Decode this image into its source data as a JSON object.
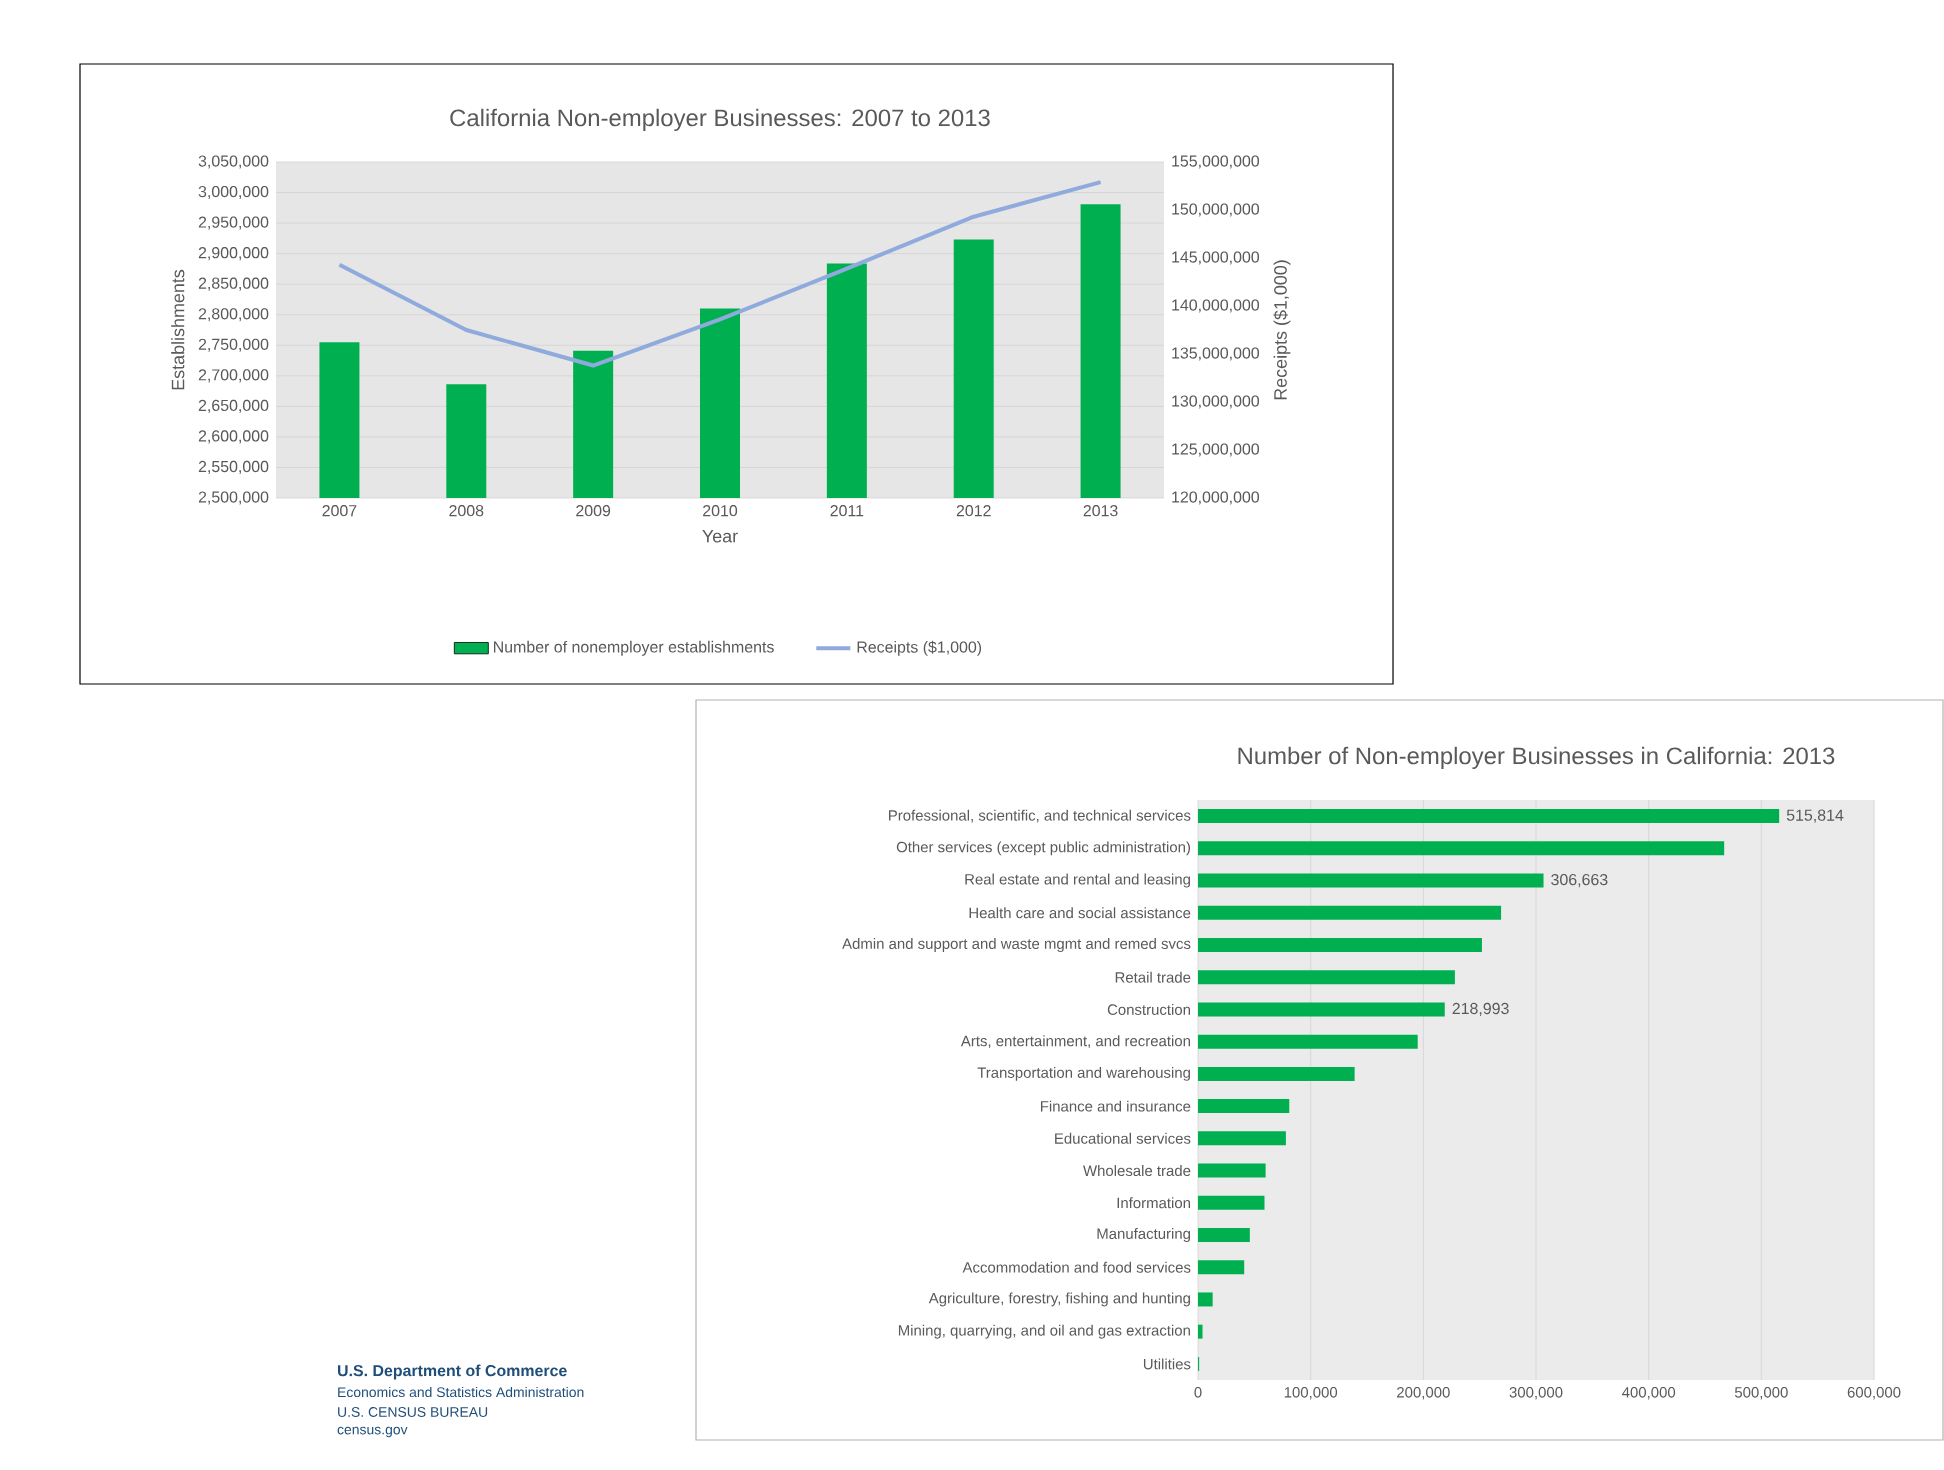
{
  "chart_data": [
    {
      "type": "bar",
      "title": "California Non-employer Businesses: 2007 to 2013",
      "xlabel": "Year",
      "ylabel": "Establishments",
      "y2label": "Receipts ($1,000)",
      "categories": [
        "2007",
        "2008",
        "2009",
        "2010",
        "2011",
        "2012",
        "2013"
      ],
      "series": [
        {
          "name": "Number of nonemployer establishments",
          "type": "bar",
          "color": "#00b050",
          "values": [
            2755000,
            2686000,
            2741000,
            2810000,
            2884000,
            2923000,
            2981000
          ]
        },
        {
          "name": "Receipts ($1,000)",
          "type": "line",
          "axis": "y2",
          "color": "#8faadc",
          "values": [
            144300000,
            137500000,
            133800000,
            138600000,
            143900000,
            149300000,
            152900000
          ]
        }
      ],
      "ylim": [
        2500000,
        3050000
      ],
      "yticks": [
        {
          "value": 2500000,
          "label": "2,500,000"
        },
        {
          "value": 2550000,
          "label": "2,550,000"
        },
        {
          "value": 2600000,
          "label": "2,600,000"
        },
        {
          "value": 2650000,
          "label": "2,650,000"
        },
        {
          "value": 2700000,
          "label": "2,700,000"
        },
        {
          "value": 2750000,
          "label": "2,750,000"
        },
        {
          "value": 2800000,
          "label": "2,800,000"
        },
        {
          "value": 2850000,
          "label": "2,850,000"
        },
        {
          "value": 2900000,
          "label": "2,900,000"
        },
        {
          "value": 2950000,
          "label": "2,950,000"
        },
        {
          "value": 3000000,
          "label": "3,000,000"
        },
        {
          "value": 3050000,
          "label": "3,050,000"
        }
      ],
      "y2lim": [
        120000000,
        155000000
      ],
      "y2ticks": [
        {
          "value": 120000000,
          "label": "120,000,000"
        },
        {
          "value": 125000000,
          "label": "125,000,000"
        },
        {
          "value": 130000000,
          "label": "130,000,000"
        },
        {
          "value": 135000000,
          "label": "135,000,000"
        },
        {
          "value": 140000000,
          "label": "140,000,000"
        },
        {
          "value": 145000000,
          "label": "145,000,000"
        },
        {
          "value": 150000000,
          "label": "150,000,000"
        },
        {
          "value": 155000000,
          "label": "155,000,000"
        }
      ],
      "grid": "y",
      "legend": "bottom"
    },
    {
      "type": "bar",
      "orientation": "horizontal",
      "title": "Number of Non-employer Businesses in California: 2013",
      "color": "#00b050",
      "categories": [
        "Professional, scientific, and technical services",
        "Other services (except public administration)",
        "Real estate and rental and leasing",
        "Health care and social assistance",
        "Admin and support and waste mgmt and remed svcs",
        "Retail trade",
        "Construction",
        "Arts, entertainment, and recreation",
        "Transportation and warehousing",
        "Finance and insurance",
        "Educational services",
        "Wholesale trade",
        "Information",
        "Manufacturing",
        "Accommodation and food services",
        "Agriculture, forestry, fishing and hunting",
        "Mining, quarrying, and oil and gas extraction",
        "Utilities"
      ],
      "values": [
        515814,
        467000,
        306663,
        269000,
        252000,
        228000,
        218993,
        195000,
        139000,
        81000,
        78000,
        60000,
        59000,
        46000,
        41000,
        13000,
        4000,
        1000
      ],
      "value_labels": [
        "515,814",
        null,
        "306,663",
        null,
        null,
        null,
        "218,993",
        null,
        null,
        null,
        null,
        null,
        null,
        null,
        null,
        null,
        null,
        null
      ],
      "xlim": [
        0,
        600000
      ],
      "xticks": [
        0,
        {
          "value": 100000,
          "label": "100,000"
        },
        {
          "value": 200000,
          "label": "200,000"
        },
        {
          "value": 300000,
          "label": "300,000"
        },
        {
          "value": 400000,
          "label": "400,000"
        },
        {
          "value": 500000,
          "label": "500,000"
        },
        {
          "value": 600000,
          "label": "600,000"
        }
      ],
      "grid": "x"
    },
    {
      "type": "other",
      "annotations": [
        "U.S. Department of Commerce",
        "Economics and Statistics Administration",
        "U.S. CENSUS BUREAU",
        "census.gov"
      ]
    }
  ]
}
